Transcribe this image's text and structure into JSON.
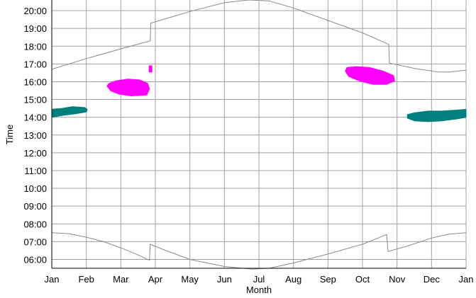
{
  "chart_data": {
    "type": "line",
    "title": "",
    "xlabel": "Month",
    "ylabel": "Time",
    "x_ticks": [
      "Jan",
      "Feb",
      "Mar",
      "Apr",
      "May",
      "Jun",
      "Jul",
      "Aug",
      "Sep",
      "Oct",
      "Nov",
      "Dec",
      "Jan"
    ],
    "x_range": [
      0,
      12
    ],
    "y_ticks": [
      "06:00",
      "07:00",
      "08:00",
      "09:00",
      "10:00",
      "11:00",
      "12:00",
      "13:00",
      "14:00",
      "15:00",
      "16:00",
      "17:00",
      "18:00",
      "19:00",
      "20:00"
    ],
    "y_range_hours": [
      5.5,
      20.6
    ],
    "grid": true,
    "series": [
      {
        "kind": "line",
        "color": "#8a8a8a",
        "points": [
          [
            0,
            16.7
          ],
          [
            1,
            17.3
          ],
          [
            2,
            17.85
          ],
          [
            2.85,
            18.3
          ],
          [
            2.87,
            19.3
          ],
          [
            4,
            19.95
          ],
          [
            5,
            20.45
          ],
          [
            5.7,
            20.6
          ],
          [
            6.3,
            20.55
          ],
          [
            7,
            20.15
          ],
          [
            8,
            19.45
          ],
          [
            9,
            18.75
          ],
          [
            9.76,
            18.1
          ],
          [
            9.78,
            17.05
          ],
          [
            10.5,
            16.75
          ],
          [
            11.2,
            16.55
          ],
          [
            11.5,
            16.55
          ],
          [
            12,
            16.65
          ]
        ]
      },
      {
        "kind": "line",
        "color": "#8a8a8a",
        "points": [
          [
            0,
            7.5
          ],
          [
            0.5,
            7.45
          ],
          [
            1,
            7.25
          ],
          [
            1.5,
            7.0
          ],
          [
            2,
            6.65
          ],
          [
            2.5,
            6.25
          ],
          [
            2.83,
            5.95
          ],
          [
            2.85,
            6.85
          ],
          [
            3.3,
            6.5
          ],
          [
            4,
            6.0
          ],
          [
            5,
            5.6
          ],
          [
            5.8,
            5.45
          ],
          [
            6.3,
            5.5
          ],
          [
            7,
            5.8
          ],
          [
            8,
            6.3
          ],
          [
            9,
            6.85
          ],
          [
            9.7,
            7.4
          ],
          [
            9.74,
            6.45
          ],
          [
            10.3,
            6.75
          ],
          [
            11,
            7.2
          ],
          [
            11.5,
            7.42
          ],
          [
            12,
            7.5
          ]
        ]
      },
      {
        "kind": "blob",
        "color": "#007f7f",
        "points": [
          [
            0,
            14.0
          ],
          [
            0.3,
            14.1
          ],
          [
            0.7,
            14.2
          ],
          [
            1,
            14.3
          ],
          [
            1.03,
            14.45
          ],
          [
            0.95,
            14.55
          ],
          [
            0.6,
            14.6
          ],
          [
            0.3,
            14.5
          ],
          [
            0,
            14.45
          ]
        ]
      },
      {
        "kind": "blob",
        "color": "#ff00ff",
        "points": [
          [
            1.6,
            15.75
          ],
          [
            1.7,
            15.5
          ],
          [
            1.95,
            15.3
          ],
          [
            2.3,
            15.2
          ],
          [
            2.75,
            15.25
          ],
          [
            2.83,
            15.6
          ],
          [
            2.78,
            15.9
          ],
          [
            2.55,
            16.1
          ],
          [
            2.2,
            16.15
          ],
          [
            1.85,
            16.05
          ],
          [
            1.65,
            15.9
          ]
        ]
      },
      {
        "kind": "blob",
        "color": "#ff00ff",
        "points": [
          [
            2.82,
            16.55
          ],
          [
            2.9,
            16.55
          ],
          [
            2.9,
            16.9
          ],
          [
            2.82,
            16.9
          ]
        ]
      },
      {
        "kind": "blob",
        "color": "#ff00ff",
        "points": [
          [
            8.5,
            16.6
          ],
          [
            8.6,
            16.3
          ],
          [
            8.9,
            16.05
          ],
          [
            9.3,
            15.85
          ],
          [
            9.7,
            15.85
          ],
          [
            9.93,
            16.05
          ],
          [
            9.9,
            16.35
          ],
          [
            9.6,
            16.6
          ],
          [
            9.2,
            16.8
          ],
          [
            8.8,
            16.85
          ],
          [
            8.55,
            16.8
          ]
        ]
      },
      {
        "kind": "blob",
        "color": "#007f7f",
        "points": [
          [
            10.3,
            13.95
          ],
          [
            10.5,
            13.8
          ],
          [
            10.9,
            13.75
          ],
          [
            11.3,
            13.8
          ],
          [
            11.7,
            13.9
          ],
          [
            12,
            14.0
          ],
          [
            12,
            14.45
          ],
          [
            11.7,
            14.4
          ],
          [
            11.3,
            14.35
          ],
          [
            10.9,
            14.35
          ],
          [
            10.5,
            14.25
          ],
          [
            10.3,
            14.15
          ]
        ]
      }
    ]
  }
}
